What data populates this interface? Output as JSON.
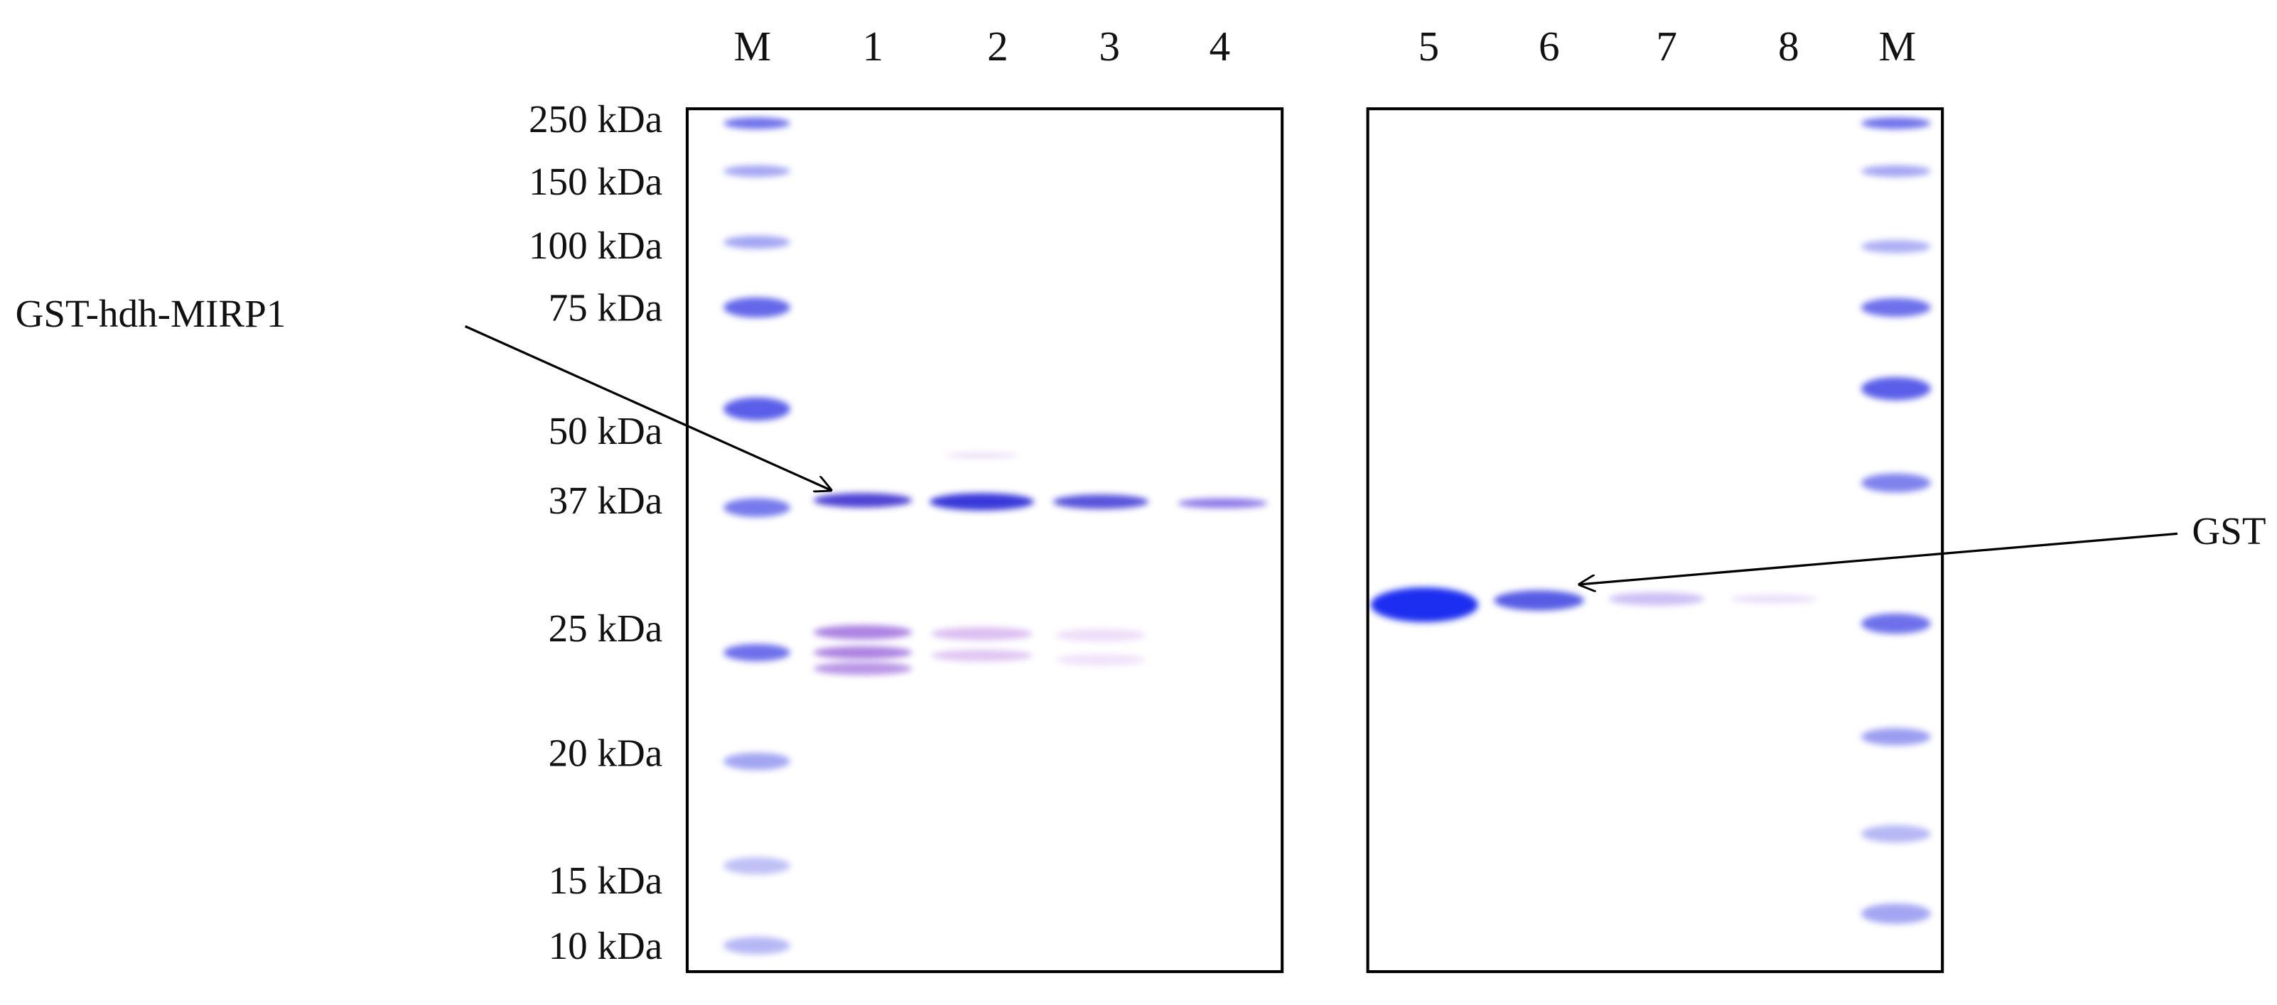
{
  "gel_left": {
    "lanes": [
      "M",
      "1",
      "2",
      "3",
      "4"
    ]
  },
  "gel_right": {
    "lanes": [
      "5",
      "6",
      "7",
      "8",
      "M"
    ]
  },
  "markers": [
    "250 kDa",
    "150 kDa",
    "100 kDa",
    "75 kDa",
    "50 kDa",
    "37 kDa",
    "25 kDa",
    "20 kDa",
    "15 kDa",
    "10 kDa"
  ],
  "annotations": {
    "fusion": "GST-hdh-MIRP1",
    "tag": "GST"
  }
}
